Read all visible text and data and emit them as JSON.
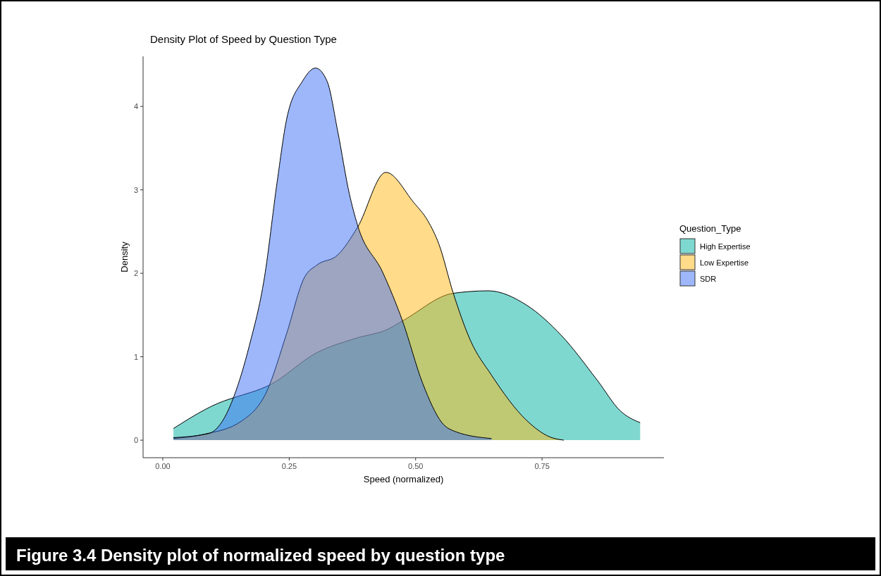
{
  "chart_data": {
    "type": "area",
    "title": "Density Plot of Speed by Question Type",
    "xlabel": "Speed (normalized)",
    "ylabel": "Density",
    "legend_title": "Question_Type",
    "legend": "right",
    "grid": false,
    "annotations": [
      "Figure 3.4 Density plot of normalized speed by question type"
    ],
    "xlim": [
      -0.039,
      0.991
    ],
    "ylim": [
      -0.21,
      4.6
    ],
    "xticks": [
      {
        "value": 0,
        "label": "0.00"
      },
      {
        "value": 0.25,
        "label": "0.25"
      },
      {
        "value": 0.5,
        "label": "0.50"
      },
      {
        "value": 0.75,
        "label": "0.75"
      }
    ],
    "yticks": [
      0,
      1,
      2,
      3,
      4
    ],
    "series": [
      {
        "name": "High Expertise",
        "color": "#00b2a2",
        "x": [
          0.021,
          0.121,
          0.141,
          0.211,
          0.305,
          0.381,
          0.445,
          0.477,
          0.574,
          0.644,
          0.719,
          0.789,
          0.859,
          0.905,
          0.944
        ],
        "values": [
          0.14,
          0.47,
          0.51,
          0.66,
          1.05,
          1.22,
          1.33,
          1.44,
          1.76,
          1.79,
          1.62,
          1.25,
          0.72,
          0.35,
          0.21
        ]
      },
      {
        "name": "Low Expertise",
        "color": "#ffb716",
        "x": [
          0.021,
          0.081,
          0.156,
          0.206,
          0.245,
          0.28,
          0.305,
          0.346,
          0.385,
          0.441,
          0.496,
          0.524,
          0.546,
          0.574,
          0.608,
          0.65,
          0.719,
          0.765,
          0.793
        ],
        "values": [
          0.02,
          0.07,
          0.23,
          0.59,
          1.28,
          1.95,
          2.1,
          2.22,
          2.55,
          3.21,
          2.85,
          2.63,
          2.35,
          1.77,
          1.2,
          0.78,
          0.24,
          0.04,
          0.0
        ]
      },
      {
        "name": "SDR",
        "color": "#3c70f5",
        "x": [
          0.021,
          0.091,
          0.121,
          0.141,
          0.171,
          0.201,
          0.226,
          0.245,
          0.276,
          0.302,
          0.325,
          0.346,
          0.369,
          0.385,
          0.435,
          0.474,
          0.514,
          0.552,
          0.58,
          0.65
        ],
        "values": [
          0.03,
          0.08,
          0.26,
          0.53,
          1.13,
          1.95,
          3.09,
          3.85,
          4.3,
          4.46,
          4.3,
          3.7,
          2.95,
          2.58,
          2.01,
          1.43,
          0.68,
          0.21,
          0.1,
          0.02
        ]
      }
    ]
  }
}
